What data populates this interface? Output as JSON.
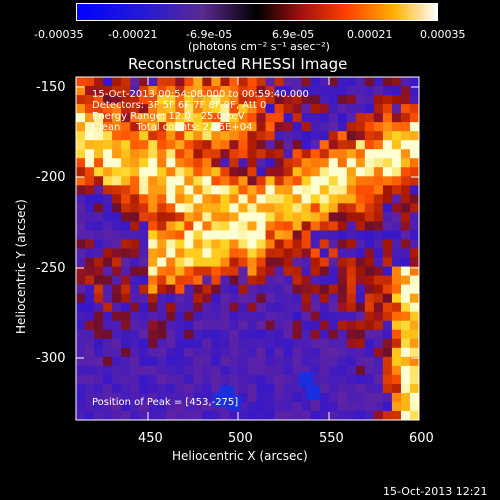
{
  "title": "Reconstructed RHESSI Image",
  "colorbar": {
    "ticks": [
      "-0.00035",
      "-0.00021",
      "-6.9e-05",
      "6.9e-05",
      "0.00021",
      "0.00035"
    ],
    "unit_label": "(photons cm⁻² s⁻¹ asec⁻²)",
    "range": [
      -0.00035,
      0.00035
    ]
  },
  "info": {
    "time_range": "15-Oct-2013 00:54:08.000 to 00:59:40.000",
    "detectors": "Detectors: 3F 5F 6F 7F 8F 9F, Att 0",
    "energy": "Energy Range: 12.0 - 25.0 keV",
    "clean": "Clean     Total counts: 2.55E+04",
    "peak": "Position of Peak = [453,-275]"
  },
  "axes": {
    "xlabel": "Heliocentric X (arcsec)",
    "ylabel": "Heliocentric Y (arcsec)",
    "xticks": [
      "450",
      "500",
      "550",
      "600"
    ],
    "yticks": [
      "-150",
      "-200",
      "-250",
      "-300"
    ],
    "xlim": [
      410,
      600
    ],
    "ylim": [
      -335,
      -145
    ]
  },
  "footer": {
    "timestamp": "15-Oct-2013 12:21"
  },
  "colors": {
    "low": "#0000ff",
    "mid": "#000000",
    "high": "#ffffff"
  }
}
